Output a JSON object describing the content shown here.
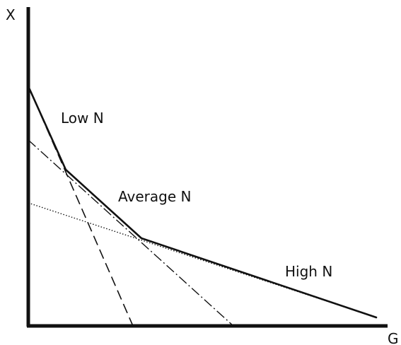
{
  "axes": {
    "y_label": "X",
    "x_label": "G"
  },
  "curves": {
    "low": {
      "label": "Low N",
      "style": "dashed"
    },
    "average": {
      "label": "Average N",
      "style": "dash-dot"
    },
    "high": {
      "label": "High N",
      "style": "dotted"
    }
  },
  "envelope": {
    "style": "solid-bold"
  },
  "colors": {
    "ink": "#111111",
    "background": "#ffffff"
  }
}
